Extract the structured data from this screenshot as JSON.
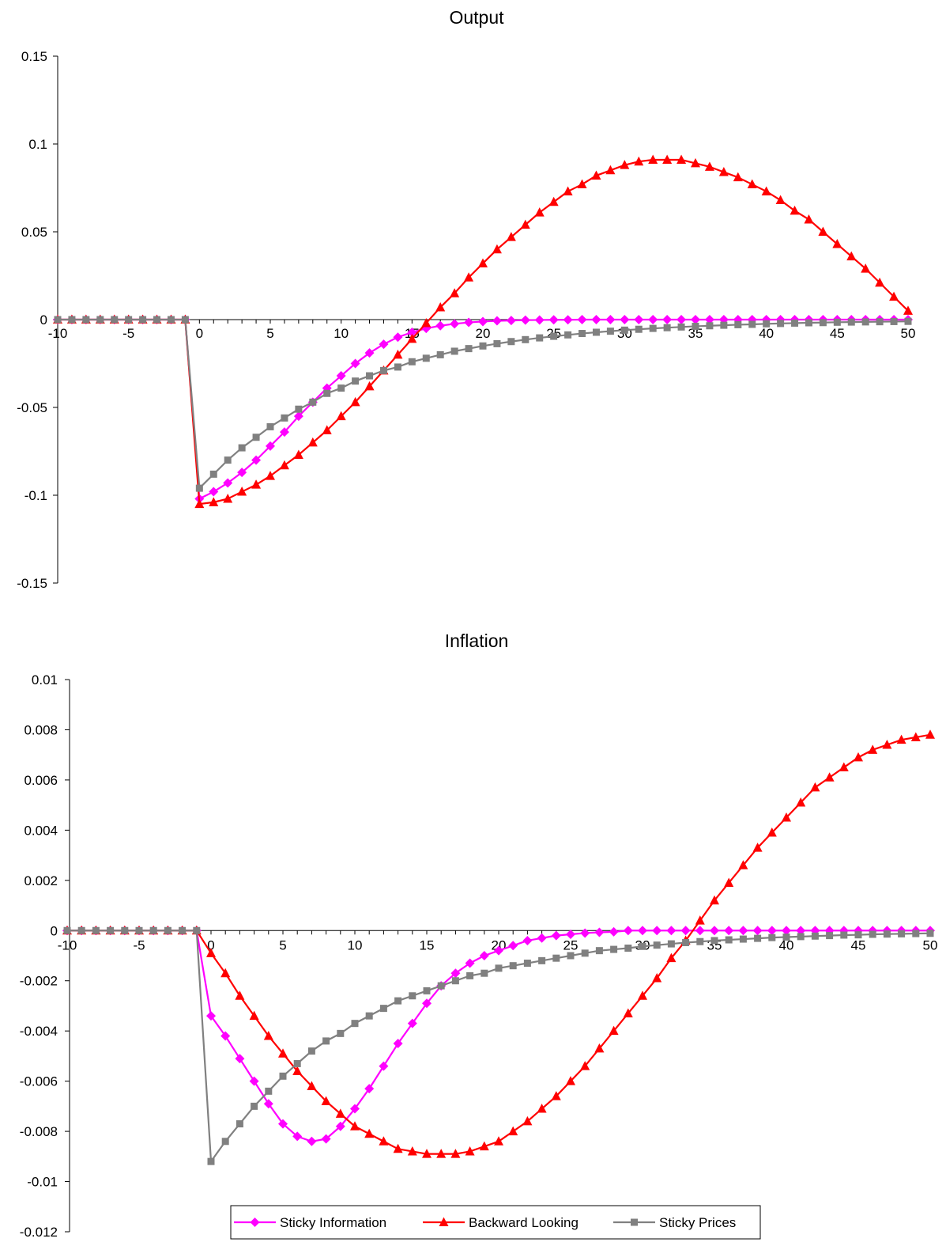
{
  "chart_data": [
    {
      "type": "line",
      "title": "Output",
      "xlabel": "",
      "ylabel": "",
      "xlim": [
        -10,
        50
      ],
      "ylim": [
        -0.15,
        0.15
      ],
      "x_ticks": [
        -10,
        -5,
        0,
        5,
        10,
        15,
        20,
        25,
        30,
        35,
        40,
        45,
        50
      ],
      "y_ticks": [
        0.15,
        0.1,
        0.05,
        0,
        -0.05,
        -0.1,
        -0.15
      ],
      "x_tick_labels": [
        "-10",
        "-5",
        "0",
        "5",
        "10",
        "15",
        "20",
        "25",
        "30",
        "35",
        "40",
        "45",
        "50"
      ],
      "y_tick_labels": [
        "0.15",
        "0.1",
        "0.05",
        "0",
        "-0.05",
        "-0.1",
        "-0.15"
      ],
      "grid": false,
      "x": [
        -10,
        -9,
        -8,
        -7,
        -6,
        -5,
        -4,
        -3,
        -2,
        -1,
        0,
        1,
        2,
        3,
        4,
        5,
        6,
        7,
        8,
        9,
        10,
        11,
        12,
        13,
        14,
        15,
        16,
        17,
        18,
        19,
        20,
        21,
        22,
        23,
        24,
        25,
        26,
        27,
        28,
        29,
        30,
        31,
        32,
        33,
        34,
        35,
        36,
        37,
        38,
        39,
        40,
        41,
        42,
        43,
        44,
        45,
        46,
        47,
        48,
        49,
        50
      ],
      "series": [
        {
          "name": "Sticky Information",
          "color": "#ff00ff",
          "marker": "diamond",
          "values": [
            0,
            0,
            0,
            0,
            0,
            0,
            0,
            0,
            0,
            0,
            -0.102,
            -0.098,
            -0.093,
            -0.087,
            -0.08,
            -0.072,
            -0.064,
            -0.055,
            -0.047,
            -0.039,
            -0.032,
            -0.025,
            -0.019,
            -0.014,
            -0.01,
            -0.0072,
            -0.005,
            -0.0035,
            -0.0024,
            -0.0016,
            -0.0011,
            -0.0007,
            -0.0005,
            -0.0003,
            -0.0002,
            -0.0001,
            -0.0001,
            0,
            0,
            0,
            0,
            0,
            0,
            0,
            0,
            0,
            0,
            0,
            0,
            0,
            0,
            0,
            0,
            0,
            0,
            0,
            0,
            0,
            0,
            0,
            0
          ]
        },
        {
          "name": "Backward Looking",
          "color": "#ff0000",
          "marker": "triangle",
          "values": [
            0,
            0,
            0,
            0,
            0,
            0,
            0,
            0,
            0,
            0,
            -0.105,
            -0.104,
            -0.102,
            -0.098,
            -0.094,
            -0.089,
            -0.083,
            -0.077,
            -0.07,
            -0.063,
            -0.055,
            -0.047,
            -0.038,
            -0.029,
            -0.02,
            -0.011,
            -0.002,
            0.007,
            0.015,
            0.024,
            0.032,
            0.04,
            0.047,
            0.054,
            0.061,
            0.067,
            0.073,
            0.077,
            0.082,
            0.085,
            0.088,
            0.09,
            0.091,
            0.091,
            0.091,
            0.089,
            0.087,
            0.084,
            0.081,
            0.077,
            0.073,
            0.068,
            0.062,
            0.057,
            0.05,
            0.043,
            0.036,
            0.029,
            0.021,
            0.013,
            0.005
          ]
        },
        {
          "name": "Sticky Prices",
          "color": "#808080",
          "marker": "square",
          "values": [
            0,
            0,
            0,
            0,
            0,
            0,
            0,
            0,
            0,
            0,
            -0.096,
            -0.088,
            -0.08,
            -0.073,
            -0.067,
            -0.061,
            -0.056,
            -0.051,
            -0.047,
            -0.042,
            -0.039,
            -0.035,
            -0.032,
            -0.029,
            -0.027,
            -0.024,
            -0.022,
            -0.02,
            -0.018,
            -0.0165,
            -0.015,
            -0.0137,
            -0.0125,
            -0.0114,
            -0.0104,
            -0.0095,
            -0.0087,
            -0.0079,
            -0.0072,
            -0.0066,
            -0.006,
            -0.0055,
            -0.005,
            -0.0046,
            -0.0042,
            -0.0038,
            -0.0035,
            -0.0032,
            -0.0029,
            -0.0027,
            -0.0024,
            -0.0022,
            -0.002,
            -0.0018,
            -0.0017,
            -0.0015,
            -0.0014,
            -0.0013,
            -0.0012,
            -0.0011,
            -0.001
          ]
        }
      ]
    },
    {
      "type": "line",
      "title": "Inflation",
      "xlabel": "",
      "ylabel": "",
      "xlim": [
        -10,
        50
      ],
      "ylim": [
        -0.012,
        0.01
      ],
      "x_ticks": [
        -10,
        -5,
        0,
        5,
        10,
        15,
        20,
        25,
        30,
        35,
        40,
        45,
        50
      ],
      "y_ticks": [
        0.01,
        0.008,
        0.006,
        0.004,
        0.002,
        0,
        -0.002,
        -0.004,
        -0.006,
        -0.008,
        -0.01,
        -0.012
      ],
      "x_tick_labels": [
        "-10",
        "-5",
        "0",
        "5",
        "10",
        "15",
        "20",
        "25",
        "30",
        "35",
        "40",
        "45",
        "50"
      ],
      "y_tick_labels": [
        "0.01",
        "0.008",
        "0.006",
        "0.004",
        "0.002",
        "0",
        "-0.002",
        "-0.004",
        "-0.006",
        "-0.008",
        "-0.01",
        "-0.012"
      ],
      "grid": false,
      "legend_position": "bottom",
      "x": [
        -10,
        -9,
        -8,
        -7,
        -6,
        -5,
        -4,
        -3,
        -2,
        -1,
        0,
        1,
        2,
        3,
        4,
        5,
        6,
        7,
        8,
        9,
        10,
        11,
        12,
        13,
        14,
        15,
        16,
        17,
        18,
        19,
        20,
        21,
        22,
        23,
        24,
        25,
        26,
        27,
        28,
        29,
        30,
        31,
        32,
        33,
        34,
        35,
        36,
        37,
        38,
        39,
        40,
        41,
        42,
        43,
        44,
        45,
        46,
        47,
        48,
        49,
        50
      ],
      "series": [
        {
          "name": "Sticky Information",
          "color": "#ff00ff",
          "marker": "diamond",
          "values": [
            0,
            0,
            0,
            0,
            0,
            0,
            0,
            0,
            0,
            0,
            -0.0034,
            -0.0042,
            -0.0051,
            -0.006,
            -0.0069,
            -0.0077,
            -0.0082,
            -0.0084,
            -0.0083,
            -0.0078,
            -0.0071,
            -0.0063,
            -0.0054,
            -0.0045,
            -0.0037,
            -0.0029,
            -0.0022,
            -0.0017,
            -0.0013,
            -0.001,
            -0.0008,
            -0.0006,
            -0.0004,
            -0.0003,
            -0.0002,
            -0.00015,
            -0.0001,
            -7e-05,
            -5e-05,
            0,
            0,
            0,
            0,
            0,
            0,
            0,
            0,
            0,
            0,
            0,
            0,
            0,
            0,
            0,
            0,
            0,
            0,
            0,
            0,
            0,
            0
          ]
        },
        {
          "name": "Backward Looking",
          "color": "#ff0000",
          "marker": "triangle",
          "values": [
            0,
            0,
            0,
            0,
            0,
            0,
            0,
            0,
            0,
            0,
            -0.0009,
            -0.0017,
            -0.0026,
            -0.0034,
            -0.0042,
            -0.0049,
            -0.0056,
            -0.0062,
            -0.0068,
            -0.0073,
            -0.0078,
            -0.0081,
            -0.0084,
            -0.0087,
            -0.0088,
            -0.0089,
            -0.0089,
            -0.0089,
            -0.0088,
            -0.0086,
            -0.0084,
            -0.008,
            -0.0076,
            -0.0071,
            -0.0066,
            -0.006,
            -0.0054,
            -0.0047,
            -0.004,
            -0.0033,
            -0.0026,
            -0.0019,
            -0.0011,
            -0.0004,
            0.0004,
            0.0012,
            0.0019,
            0.0026,
            0.0033,
            0.0039,
            0.0045,
            0.0051,
            0.0057,
            0.0061,
            0.0065,
            0.0069,
            0.0072,
            0.0074,
            0.0076,
            0.0077,
            0.0078
          ]
        },
        {
          "name": "Sticky Prices",
          "color": "#808080",
          "marker": "square",
          "values": [
            0,
            0,
            0,
            0,
            0,
            0,
            0,
            0,
            0,
            0,
            -0.0092,
            -0.0084,
            -0.0077,
            -0.007,
            -0.0064,
            -0.0058,
            -0.0053,
            -0.0048,
            -0.0044,
            -0.0041,
            -0.0037,
            -0.0034,
            -0.0031,
            -0.0028,
            -0.0026,
            -0.0024,
            -0.0022,
            -0.002,
            -0.0018,
            -0.0017,
            -0.0015,
            -0.0014,
            -0.0013,
            -0.0012,
            -0.0011,
            -0.001,
            -0.0009,
            -0.0008,
            -0.00075,
            -0.0007,
            -0.00063,
            -0.00058,
            -0.00053,
            -0.00048,
            -0.00044,
            -0.0004,
            -0.00037,
            -0.00034,
            -0.00031,
            -0.00028,
            -0.00026,
            -0.00024,
            -0.00022,
            -0.0002,
            -0.00018,
            -0.00017,
            -0.00015,
            -0.00014,
            -0.00013,
            -0.00012,
            -0.00011
          ]
        }
      ]
    }
  ]
}
